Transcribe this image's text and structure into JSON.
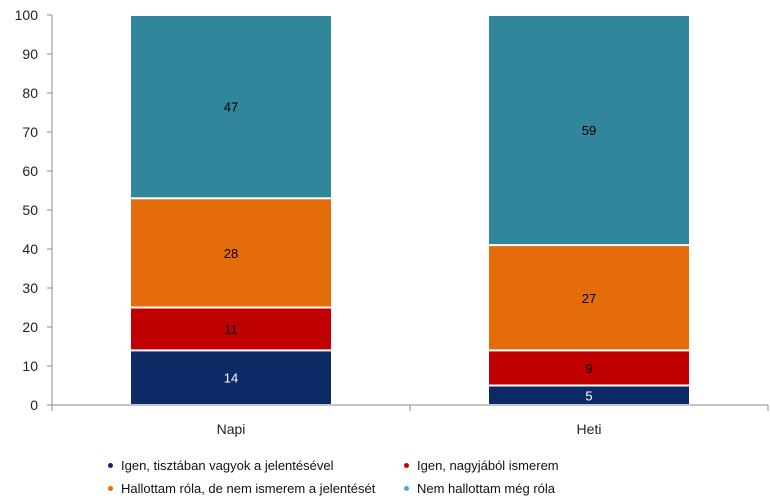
{
  "chart_data": {
    "type": "bar",
    "stacked": true,
    "categories": [
      "Napi",
      "Heti"
    ],
    "series": [
      {
        "name": "Igen, tisztában vagyok a jelentésével",
        "color": "#0c2a66",
        "values": [
          14,
          5
        ]
      },
      {
        "name": "Igen, nagyjából ismerem",
        "color": "#c00000",
        "values": [
          11,
          9
        ]
      },
      {
        "name": "Hallottam róla, de nem ismerem a jelentését",
        "color": "#e46c0a",
        "values": [
          28,
          27
        ]
      },
      {
        "name": "Nem hallottam még róla",
        "color": "#31869b",
        "values": [
          47,
          59
        ]
      }
    ],
    "ylim": [
      0,
      100
    ],
    "yticks": [
      "0",
      "10",
      "20",
      "30",
      "40",
      "50",
      "60",
      "70",
      "80",
      "90",
      "100"
    ],
    "grid": false,
    "legend_position": "bottom"
  }
}
